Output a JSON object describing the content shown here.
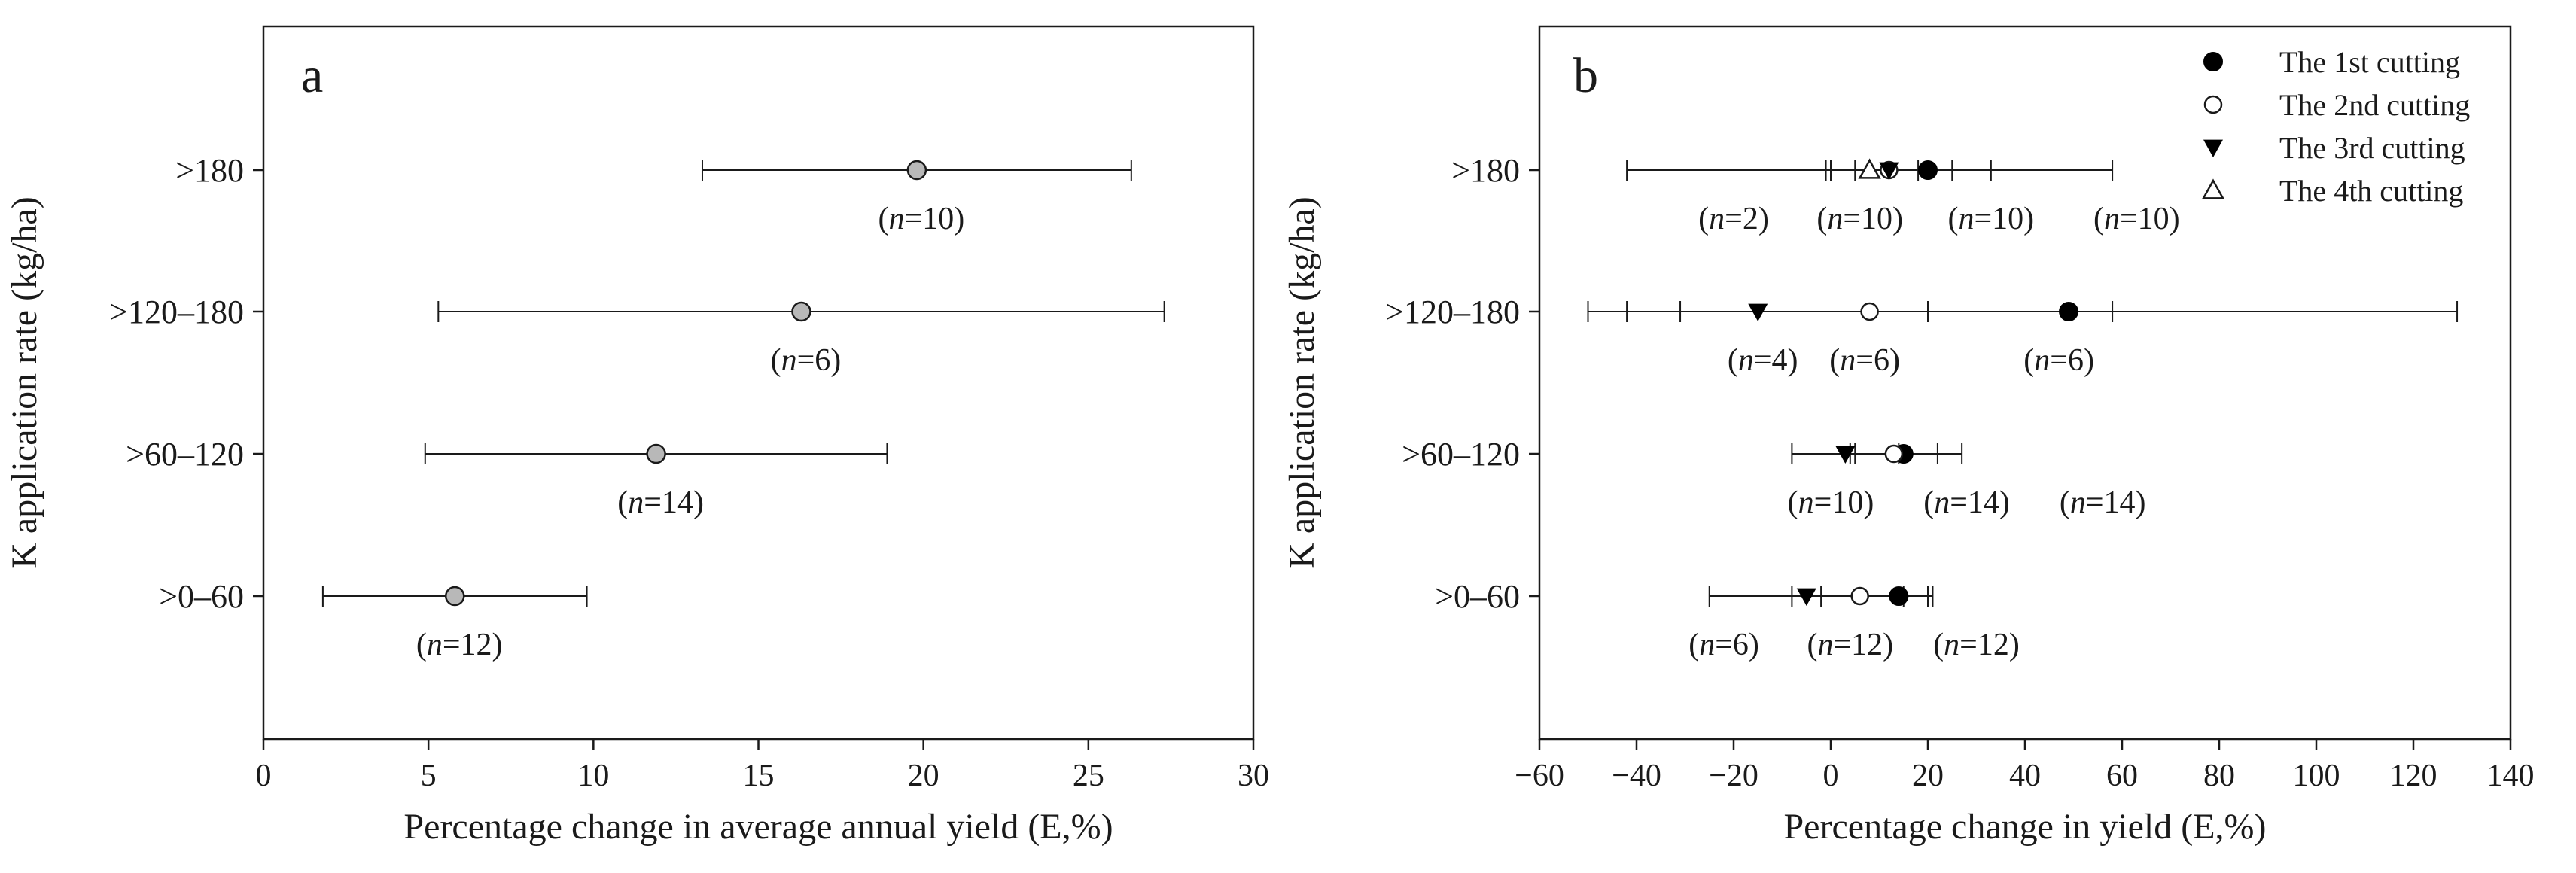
{
  "chart_data": [
    {
      "type": "scatter",
      "panel_label": "a",
      "xlabel": "Percentage change in average annual yield (E,%)",
      "ylabel": "K application rate (kg/ha)",
      "xlim": [
        0,
        30
      ],
      "xticks": [
        0,
        5,
        10,
        15,
        20,
        25,
        30
      ],
      "categories": [
        ">180",
        ">120–180",
        ">60–120",
        ">0–60"
      ],
      "grid": false,
      "series": [
        {
          "marker": "circle-gray",
          "points": [
            {
              "category": ">180",
              "mean": 19.8,
              "lower": 13.3,
              "upper": 26.3,
              "n_italic": "n",
              "n_label": "=10"
            },
            {
              "category": ">120–180",
              "mean": 16.3,
              "lower": 5.3,
              "upper": 27.3,
              "n_italic": "n",
              "n_label": "=6"
            },
            {
              "category": ">60–120",
              "mean": 11.9,
              "lower": 4.9,
              "upper": 18.9,
              "n_italic": "n",
              "n_label": "=14"
            },
            {
              "category": ">0–60",
              "mean": 5.8,
              "lower": 1.8,
              "upper": 9.8,
              "n_italic": "n",
              "n_label": "=12"
            }
          ]
        }
      ]
    },
    {
      "type": "scatter",
      "panel_label": "b",
      "xlabel": "Percentage change in yield (E,%)",
      "ylabel": "K application rate (kg/ha)",
      "xlim": [
        -60,
        140
      ],
      "xticks": [
        -60,
        -40,
        -20,
        0,
        20,
        40,
        60,
        80,
        100,
        120,
        140
      ],
      "xtick_labels": [
        "−60",
        "−40",
        "−20",
        "0",
        "20",
        "40",
        "60",
        "80",
        "100",
        "120",
        "140"
      ],
      "categories": [
        ">180",
        ">120–180",
        ">60–120",
        ">0–60"
      ],
      "grid": false,
      "legend_position": "top-right",
      "series": [
        {
          "name": "The 1st cutting",
          "marker": "filled-circle",
          "points": [
            {
              "category": ">180",
              "mean": 20,
              "lower": 0,
              "upper": 33
            },
            {
              "category": ">120–180",
              "mean": 49,
              "lower": -31,
              "upper": 129
            },
            {
              "category": ">60–120",
              "mean": 15,
              "lower": 5,
              "upper": 27
            },
            {
              "category": ">0–60",
              "mean": 14,
              "lower": -2,
              "upper": 21
            }
          ]
        },
        {
          "name": "The 2nd cutting",
          "marker": "open-circle",
          "points": [
            {
              "category": ">180",
              "mean": 12,
              "lower": -1,
              "upper": 25
            },
            {
              "category": ">120–180",
              "mean": 8,
              "lower": -42,
              "upper": 58
            },
            {
              "category": ">60–120",
              "mean": 13,
              "lower": 4,
              "upper": 22
            },
            {
              "category": ">0–60",
              "mean": 6,
              "lower": -8,
              "upper": 20
            }
          ]
        },
        {
          "name": "The 3rd cutting",
          "marker": "filled-triangle-down",
          "points": [
            {
              "category": ">180",
              "mean": 12,
              "lower": 5,
              "upper": 18
            },
            {
              "category": ">120–180",
              "mean": -15,
              "lower": -50,
              "upper": 20
            },
            {
              "category": ">60–120",
              "mean": 3,
              "lower": -8,
              "upper": 14
            },
            {
              "category": ">0–60",
              "mean": -5,
              "lower": -25,
              "upper": 15
            }
          ]
        },
        {
          "name": "The 4th cutting",
          "marker": "open-triangle-up",
          "points": [
            {
              "category": ">180",
              "mean": 8,
              "lower": -42,
              "upper": 58
            }
          ]
        }
      ],
      "annotations": [
        {
          "category": ">180",
          "x_value": -20,
          "n_italic": "n",
          "n_label": "=2"
        },
        {
          "category": ">180",
          "x_value": 6,
          "n_italic": "n",
          "n_label": "=10"
        },
        {
          "category": ">180",
          "x_value": 33,
          "n_italic": "n",
          "n_label": "=10"
        },
        {
          "category": ">180",
          "x_value": 63,
          "n_italic": "n",
          "n_label": "=10"
        },
        {
          "category": ">120–180",
          "x_value": -14,
          "n_italic": "n",
          "n_label": "=4"
        },
        {
          "category": ">120–180",
          "x_value": 7,
          "n_italic": "n",
          "n_label": "=6"
        },
        {
          "category": ">120–180",
          "x_value": 47,
          "n_italic": "n",
          "n_label": "=6"
        },
        {
          "category": ">60–120",
          "x_value": 0,
          "n_italic": "n",
          "n_label": "=10"
        },
        {
          "category": ">60–120",
          "x_value": 28,
          "n_italic": "n",
          "n_label": "=14"
        },
        {
          "category": ">60–120",
          "x_value": 56,
          "n_italic": "n",
          "n_label": "=14"
        },
        {
          "category": ">0–60",
          "x_value": -22,
          "n_italic": "n",
          "n_label": "=6"
        },
        {
          "category": ">0–60",
          "x_value": 4,
          "n_italic": "n",
          "n_label": "=12"
        },
        {
          "category": ">0–60",
          "x_value": 30,
          "n_italic": "n",
          "n_label": "=12"
        }
      ]
    }
  ]
}
